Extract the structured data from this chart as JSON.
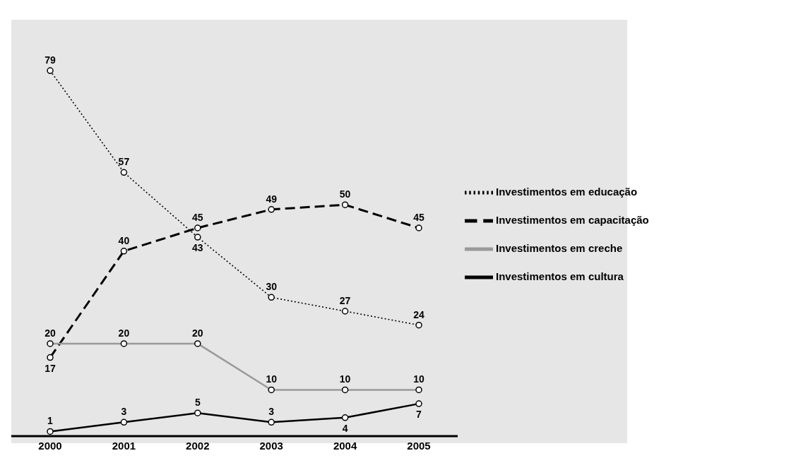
{
  "chart_data": {
    "type": "line",
    "categories": [
      "2000",
      "2001",
      "2002",
      "2003",
      "2004",
      "2005"
    ],
    "series": [
      {
        "name": "Investimentos em educação",
        "color": "#000000",
        "line_style": "dotted",
        "values": [
          79,
          57,
          43,
          30,
          27,
          24
        ]
      },
      {
        "name": "Investimentos em capacitação",
        "color": "#000000",
        "line_style": "dashed",
        "values": [
          17,
          40,
          45,
          49,
          50,
          45
        ]
      },
      {
        "name": "Investimentos em creche",
        "color": "#999999",
        "line_style": "solid",
        "values": [
          20,
          20,
          20,
          10,
          10,
          10
        ]
      },
      {
        "name": "Investimentos em cultura",
        "color": "#000000",
        "line_style": "solid",
        "values": [
          1,
          3,
          5,
          3,
          4,
          7
        ]
      }
    ],
    "ylim": [
      0,
      90
    ],
    "tick_labels": "x",
    "legend": "right",
    "marker": "circle",
    "data_labels": true
  }
}
